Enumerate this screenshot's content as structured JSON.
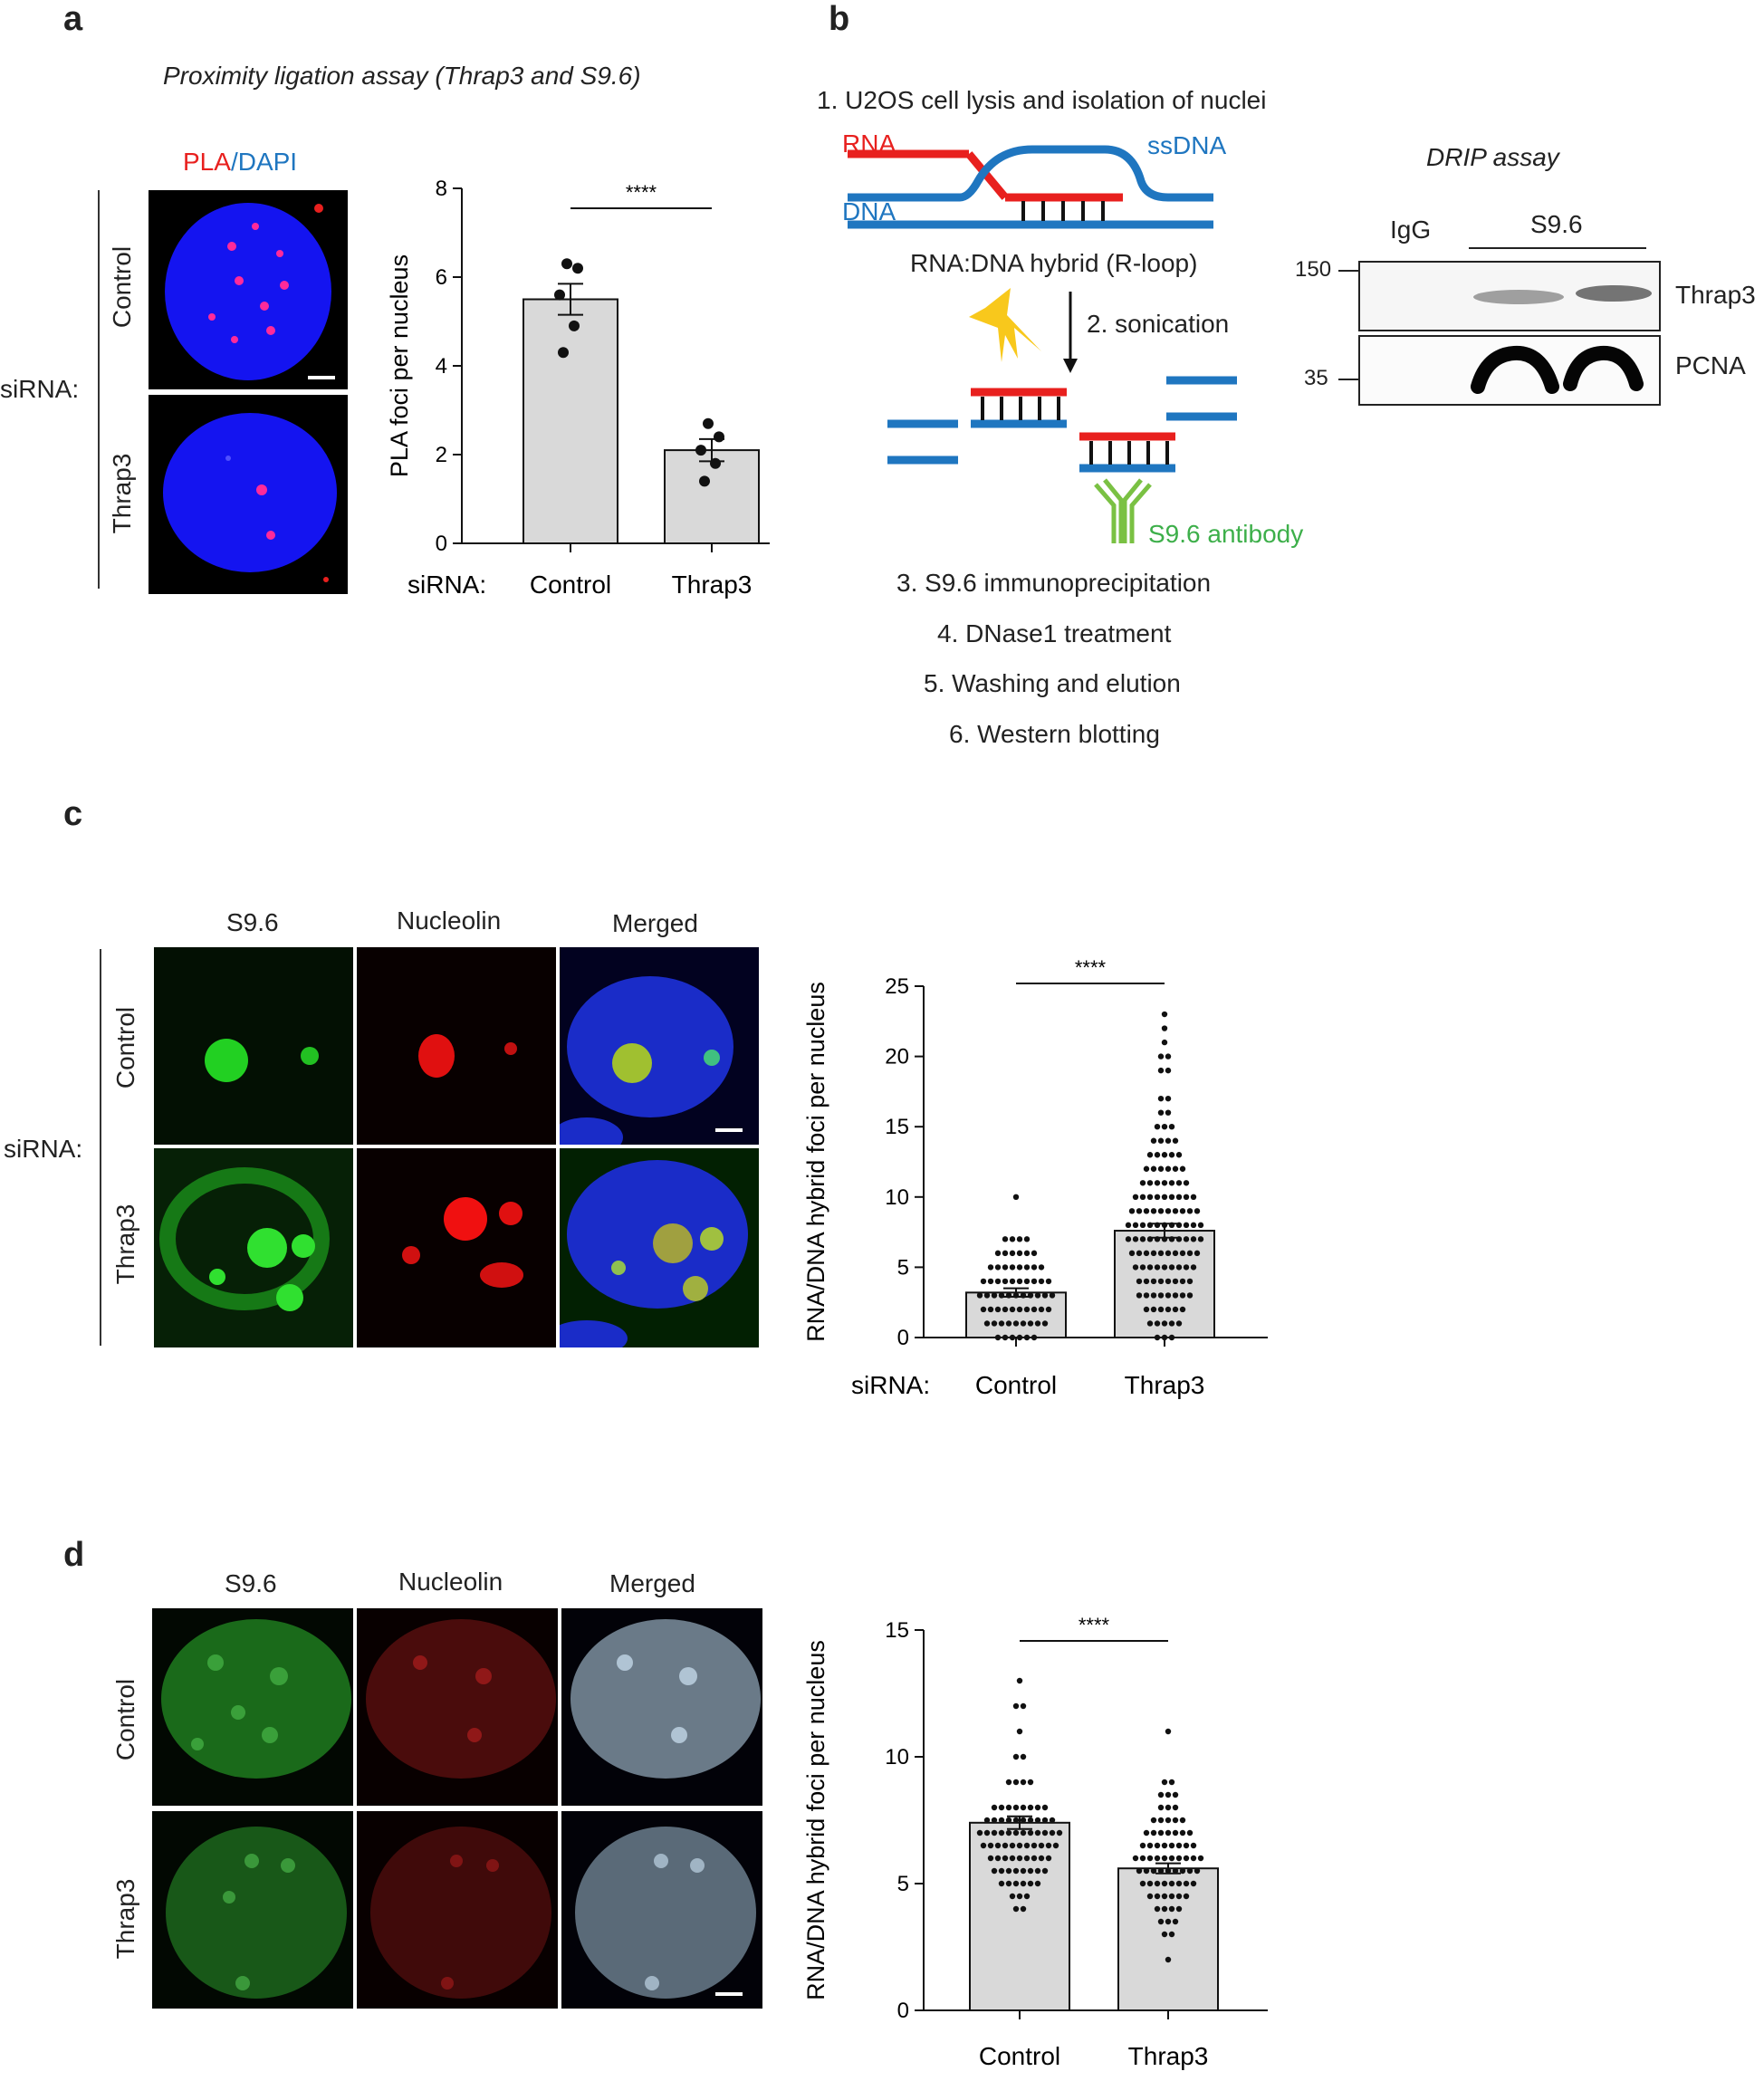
{
  "panels": {
    "a": {
      "letter": "a",
      "title": "Proximity ligation assay (Thrap3 and S9.6)",
      "stain_pla": "PLA",
      "stain_sep": "/",
      "stain_dapi": "DAPI",
      "sirna_label": "siRNA:",
      "rows": [
        "Control",
        "Thrap3"
      ]
    },
    "b": {
      "letter": "b",
      "step1": "1. U2OS cell lysis and isolation of nuclei",
      "rna": "RNA",
      "dna": "DNA",
      "ssdna": "ssDNA",
      "hybrid": "RNA:DNA hybrid (R-loop)",
      "step2": "2. sonication",
      "antibody": "S9.6 antibody",
      "step3": "3. S9.6 immunoprecipitation",
      "step4": "4. DNase1 treatment",
      "step5": "5. Washing and elution",
      "step6": "6. Western blotting",
      "drip_title": "DRIP assay",
      "lane_igg": "IgG",
      "lane_s96": "S9.6",
      "marker_150": "150",
      "marker_35": "35",
      "band_thrap3": "Thrap3",
      "band_pcna": "PCNA"
    },
    "c": {
      "letter": "c",
      "col_headers": [
        "S9.6",
        "Nucleolin",
        "Merged"
      ],
      "sirna_label": "siRNA:",
      "rows": [
        "Control",
        "Thrap3"
      ]
    },
    "d": {
      "letter": "d",
      "col_headers": [
        "S9.6",
        "Nucleolin",
        "Merged"
      ],
      "rows": [
        "Control",
        "Thrap3"
      ]
    }
  },
  "colors": {
    "rna_red": "#e8201e",
    "dna_blue": "#1f76c0",
    "antibody_green": "#3daf4a",
    "bar_fill": "#d9d9d9",
    "dapi_blue": "#1818ff",
    "pla_magenta": "#ff2a9a"
  },
  "chart_data": [
    {
      "type": "bar",
      "panel": "a",
      "categories": [
        "Control",
        "Thrap3"
      ],
      "values": [
        5.5,
        2.1
      ],
      "errors": [
        0.35,
        0.25
      ],
      "points": [
        [
          6.3,
          6.2,
          5.6,
          4.9,
          4.3
        ],
        [
          2.7,
          2.4,
          2.1,
          1.8,
          1.4
        ]
      ],
      "ylabel": "PLA foci per nucleus",
      "xprefix": "siRNA:",
      "ylim": [
        0,
        8
      ],
      "yticks": [
        0,
        2,
        4,
        6,
        8
      ],
      "significance": "****"
    },
    {
      "type": "bar",
      "panel": "c",
      "categories": [
        "Control",
        "Thrap3"
      ],
      "values": [
        3.2,
        7.6
      ],
      "errors": [
        0.3,
        0.5
      ],
      "point_counts": [
        [
          10,
          1
        ],
        [
          7,
          4
        ],
        [
          6,
          6
        ],
        [
          5,
          8
        ],
        [
          4,
          10
        ],
        [
          3,
          11
        ],
        [
          2,
          10
        ],
        [
          1,
          9
        ],
        [
          0,
          6
        ]
      ],
      "point_counts_b": [
        [
          23,
          1
        ],
        [
          22,
          1
        ],
        [
          21,
          1
        ],
        [
          20,
          2
        ],
        [
          19,
          2
        ],
        [
          17,
          2
        ],
        [
          16,
          2
        ],
        [
          15,
          3
        ],
        [
          14,
          4
        ],
        [
          13,
          5
        ],
        [
          12,
          6
        ],
        [
          11,
          7
        ],
        [
          10,
          9
        ],
        [
          9,
          10
        ],
        [
          8,
          11
        ],
        [
          7,
          11
        ],
        [
          6,
          10
        ],
        [
          5,
          9
        ],
        [
          4,
          8
        ],
        [
          3,
          8
        ],
        [
          2,
          6
        ],
        [
          1,
          5
        ],
        [
          0,
          3
        ]
      ],
      "ylabel": "RNA/DNA hybrid foci per nucleus",
      "xprefix": "siRNA:",
      "ylim": [
        0,
        25
      ],
      "yticks": [
        0,
        5,
        10,
        15,
        20,
        25
      ],
      "significance": "****"
    },
    {
      "type": "bar",
      "panel": "d",
      "categories": [
        "Control",
        "Thrap3"
      ],
      "values": [
        7.4,
        5.6
      ],
      "errors": [
        0.25,
        0.2
      ],
      "point_counts": [
        [
          13,
          1
        ],
        [
          12,
          2
        ],
        [
          11,
          1
        ],
        [
          10,
          2
        ],
        [
          9,
          4
        ],
        [
          8,
          8
        ],
        [
          7.5,
          10
        ],
        [
          7,
          12
        ],
        [
          6.5,
          11
        ],
        [
          6,
          9
        ],
        [
          5.5,
          8
        ],
        [
          5,
          6
        ],
        [
          4.5,
          3
        ],
        [
          4,
          2
        ]
      ],
      "point_counts_b": [
        [
          11,
          1
        ],
        [
          9,
          2
        ],
        [
          8.5,
          3
        ],
        [
          8,
          3
        ],
        [
          7.5,
          5
        ],
        [
          7,
          7
        ],
        [
          6.5,
          8
        ],
        [
          6,
          10
        ],
        [
          5.5,
          9
        ],
        [
          5,
          8
        ],
        [
          4.5,
          6
        ],
        [
          4,
          4
        ],
        [
          3.5,
          3
        ],
        [
          3,
          2
        ],
        [
          2,
          1
        ]
      ],
      "ylabel": "RNA/DNA hybrid foci per nucleus",
      "xprefix": "",
      "ylim": [
        0,
        15
      ],
      "yticks": [
        0,
        5,
        10,
        15
      ],
      "significance": "****"
    }
  ]
}
